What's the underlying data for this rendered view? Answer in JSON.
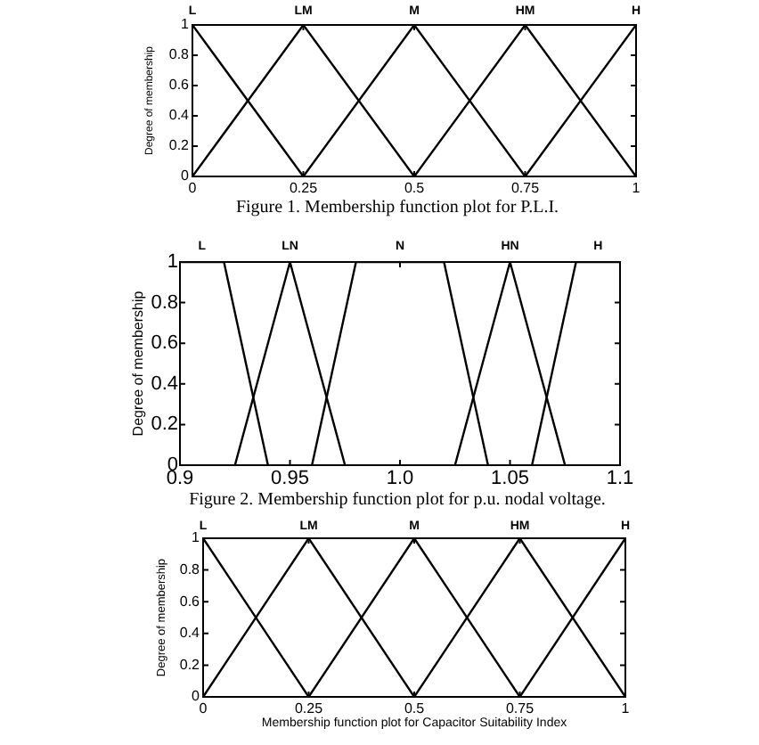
{
  "chart_data": [
    {
      "type": "line",
      "ylabel": "Degree of membership",
      "xlim": [
        0,
        1
      ],
      "xticks": [
        0,
        0.25,
        0.5,
        0.75,
        1
      ],
      "ylim": [
        0,
        1
      ],
      "yticks": [
        0,
        0.2,
        0.4,
        0.6,
        0.8,
        1
      ],
      "series": [
        {
          "name": "L",
          "color": "#000000",
          "x": [
            0,
            0.25
          ],
          "values": [
            1,
            0
          ]
        },
        {
          "name": "LM",
          "color": "#000000",
          "x": [
            0,
            0.25,
            0.5
          ],
          "values": [
            0,
            1,
            0
          ]
        },
        {
          "name": "M",
          "color": "#000000",
          "x": [
            0.25,
            0.5,
            0.75
          ],
          "values": [
            0,
            1,
            0
          ]
        },
        {
          "name": "HM",
          "color": "#000000",
          "x": [
            0.5,
            0.75,
            1
          ],
          "values": [
            0,
            1,
            0
          ]
        },
        {
          "name": "H",
          "color": "#000000",
          "x": [
            0.75,
            1
          ],
          "values": [
            0,
            1
          ]
        }
      ],
      "annotations": [
        "Figure 1. Membership function plot for P.L.I."
      ]
    },
    {
      "type": "line",
      "ylabel": "Degree of membership",
      "xlim": [
        0.9,
        1.1
      ],
      "xticks": [
        0.9,
        0.95,
        {
          "value": 1,
          "label": "1.0"
        },
        1.05,
        1.1
      ],
      "ylim": [
        0,
        1
      ],
      "yticks": [
        0,
        0.2,
        0.4,
        0.6,
        0.8,
        1
      ],
      "series": [
        {
          "name": "L",
          "color": "#000000",
          "x": [
            0.9,
            0.92,
            0.94
          ],
          "values": [
            1,
            1,
            0
          ]
        },
        {
          "name": "LN",
          "color": "#000000",
          "x": [
            0.925,
            0.95,
            0.975
          ],
          "values": [
            0,
            1,
            0
          ]
        },
        {
          "name": "N",
          "color": "#000000",
          "x": [
            0.96,
            0.98,
            1.02,
            1.04
          ],
          "values": [
            0,
            1,
            1,
            0
          ]
        },
        {
          "name": "HN",
          "color": "#000000",
          "x": [
            1.025,
            1.05,
            1.075
          ],
          "values": [
            0,
            1,
            0
          ]
        },
        {
          "name": "H",
          "color": "#000000",
          "x": [
            1.06,
            1.08,
            1.1
          ],
          "values": [
            0,
            1,
            1
          ]
        }
      ],
      "annotations": [
        "Figure 2. Membership function plot for p.u. nodal voltage."
      ]
    },
    {
      "type": "line",
      "xlabel": "Membership function plot for Capacitor Suitability Index",
      "ylabel": "Degree of membership",
      "xlim": [
        0,
        1
      ],
      "xticks": [
        0,
        0.25,
        0.5,
        0.75,
        1
      ],
      "ylim": [
        0,
        1
      ],
      "yticks": [
        0,
        0.2,
        0.4,
        0.6,
        0.8,
        1
      ],
      "series": [
        {
          "name": "L",
          "color": "#000000",
          "x": [
            0,
            0.25
          ],
          "values": [
            1,
            0
          ]
        },
        {
          "name": "LM",
          "color": "#000000",
          "x": [
            0,
            0.25,
            0.5
          ],
          "values": [
            0,
            1,
            0
          ]
        },
        {
          "name": "M",
          "color": "#000000",
          "x": [
            0.25,
            0.5,
            0.75
          ],
          "values": [
            0,
            1,
            0
          ]
        },
        {
          "name": "HM",
          "color": "#000000",
          "x": [
            0.5,
            0.75,
            1
          ],
          "values": [
            0,
            1,
            0
          ]
        },
        {
          "name": "H",
          "color": "#000000",
          "x": [
            0.75,
            1
          ],
          "values": [
            0,
            1
          ]
        }
      ]
    }
  ]
}
